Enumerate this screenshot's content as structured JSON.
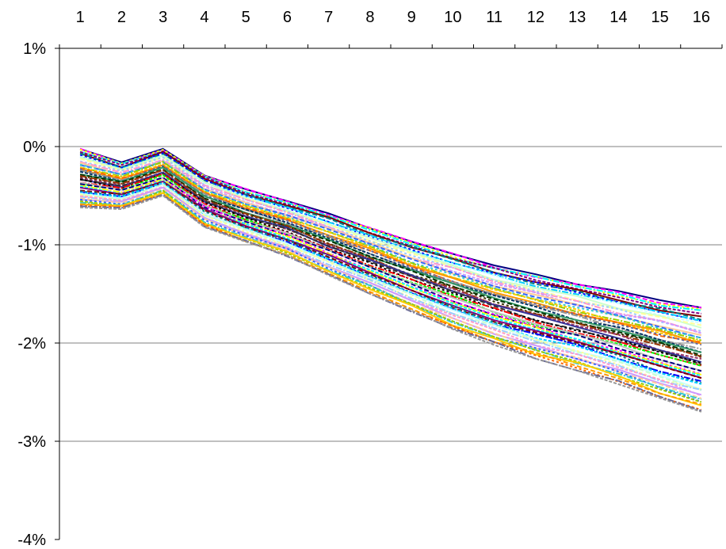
{
  "chart_data": {
    "type": "line",
    "title": "",
    "xlabel": "",
    "ylabel": "",
    "categories": [
      "1",
      "2",
      "3",
      "4",
      "5",
      "6",
      "7",
      "8",
      "9",
      "10",
      "11",
      "12",
      "13",
      "14",
      "15",
      "16"
    ],
    "y_tick_labels": [
      "1%",
      "0%",
      "-1%",
      "-2%",
      "-3%",
      "-4%"
    ],
    "y_tick_values": [
      1,
      0,
      -1,
      -2,
      -3,
      -4
    ],
    "ylim": [
      -4,
      1
    ],
    "x_axis_position": "top",
    "grid": true,
    "legend": "none",
    "series_count": 60,
    "envelope": {
      "upper": [
        -0.02,
        -0.16,
        -0.02,
        -0.28,
        -0.43,
        -0.55,
        -0.68,
        -0.82,
        -0.96,
        -1.08,
        -1.2,
        -1.3,
        -1.39,
        -1.47,
        -1.56,
        -1.64
      ],
      "lower": [
        -0.62,
        -0.64,
        -0.5,
        -0.82,
        -0.98,
        -1.12,
        -1.32,
        -1.5,
        -1.68,
        -1.86,
        -2.02,
        -2.16,
        -2.28,
        -2.42,
        -2.56,
        -2.7
      ]
    },
    "colors": [
      "#000080",
      "#ff00ff",
      "#ffff00",
      "#00ffff",
      "#800080",
      "#800000",
      "#008080",
      "#0000ff",
      "#00ccff",
      "#ccffff",
      "#ccffcc",
      "#ffff99",
      "#99ccff",
      "#ff99cc",
      "#cc99ff",
      "#ffcc99",
      "#3366ff",
      "#33cccc",
      "#99cc00",
      "#ffcc00",
      "#ff9900",
      "#ff6600",
      "#666699",
      "#969696",
      "#003366",
      "#339966",
      "#003300",
      "#333300",
      "#993300",
      "#993366",
      "#333399",
      "#333333",
      "#000000",
      "#ff0000",
      "#00ff00",
      "#c0c0c0"
    ]
  }
}
